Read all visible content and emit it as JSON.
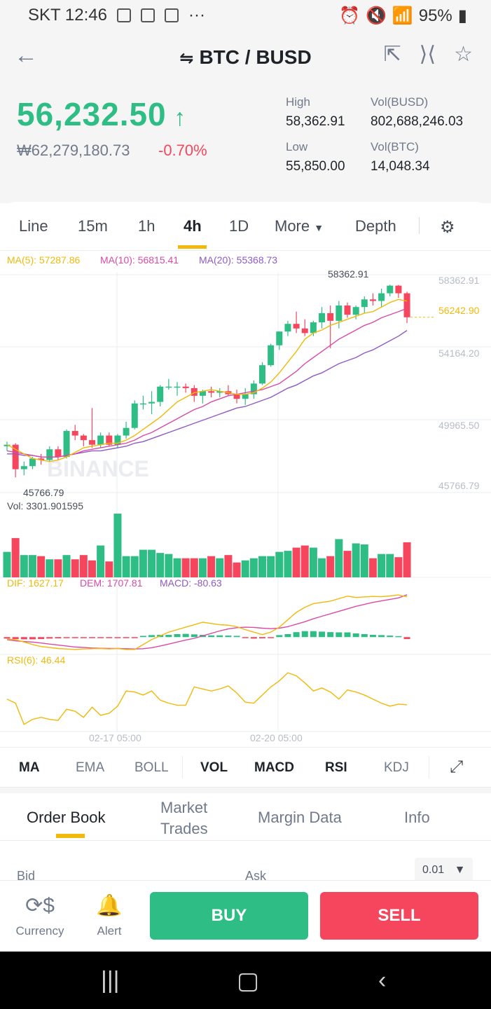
{
  "status_bar": {
    "carrier_time": "SKT 12:46",
    "dots": "···",
    "battery": "95%"
  },
  "header": {
    "pair": "BTC / BUSD",
    "last_price": "56,232.50",
    "fiat_price": "₩62,279,180.73",
    "change": "-0.70%",
    "high_label": "High",
    "high_value": "58,362.91",
    "low_label": "Low",
    "low_value": "55,850.00",
    "vol_busd_label": "Vol(BUSD)",
    "vol_busd_value": "802,688,246.03",
    "vol_btc_label": "Vol(BTC)",
    "vol_btc_value": "14,048.34"
  },
  "intervals": [
    "Line",
    "15m",
    "1h",
    "4h",
    "1D",
    "More",
    "Depth"
  ],
  "active_interval": "4h",
  "chart": {
    "ma5": "MA(5): 57287.86",
    "ma10": "MA(10): 56815.41",
    "ma20": "MA(20): 55368.73",
    "y_labels": [
      "58362.91",
      "54164.20",
      "49965.50",
      "45766.79"
    ],
    "current_price_label": "56242.90",
    "high_marker": "58362.91",
    "low_marker": "45766.79",
    "watermark": "BINANCE",
    "vol_label": "Vol: 3301.901595",
    "dif": "DIF: 1627.17",
    "dem": "DEM: 1707.81",
    "macd": "MACD: -80.63",
    "rsi": "RSI(6): 46.44",
    "x_labels": [
      "02-17 05:00",
      "02-20 05:00"
    ]
  },
  "chart_data": {
    "type": "candlestick",
    "ylim": [
      45000,
      59200
    ],
    "candles": [
      {
        "o": 47800,
        "h": 48100,
        "l": 47500,
        "c": 47900
      },
      {
        "o": 47900,
        "h": 48000,
        "l": 45766.79,
        "c": 46300
      },
      {
        "o": 46300,
        "h": 46800,
        "l": 45900,
        "c": 46500
      },
      {
        "o": 46500,
        "h": 47100,
        "l": 46300,
        "c": 47000
      },
      {
        "o": 47000,
        "h": 47300,
        "l": 46600,
        "c": 46900
      },
      {
        "o": 46900,
        "h": 47800,
        "l": 46800,
        "c": 47600
      },
      {
        "o": 47600,
        "h": 47800,
        "l": 46900,
        "c": 47100
      },
      {
        "o": 47100,
        "h": 48900,
        "l": 47000,
        "c": 48800
      },
      {
        "o": 48800,
        "h": 49200,
        "l": 48200,
        "c": 48500
      },
      {
        "o": 48500,
        "h": 48600,
        "l": 47800,
        "c": 48200
      },
      {
        "o": 48200,
        "h": 50300,
        "l": 47700,
        "c": 47900
      },
      {
        "o": 47900,
        "h": 48700,
        "l": 47700,
        "c": 48500
      },
      {
        "o": 48500,
        "h": 48700,
        "l": 47800,
        "c": 47900
      },
      {
        "o": 47900,
        "h": 48600,
        "l": 47700,
        "c": 48500
      },
      {
        "o": 48500,
        "h": 49400,
        "l": 48300,
        "c": 49000
      },
      {
        "o": 49000,
        "h": 50800,
        "l": 48900,
        "c": 50600
      },
      {
        "o": 50600,
        "h": 51100,
        "l": 50200,
        "c": 50600
      },
      {
        "o": 50600,
        "h": 51400,
        "l": 49900,
        "c": 50700
      },
      {
        "o": 50700,
        "h": 51800,
        "l": 50400,
        "c": 51700
      },
      {
        "o": 51700,
        "h": 52200,
        "l": 51500,
        "c": 51700
      },
      {
        "o": 51700,
        "h": 52000,
        "l": 51100,
        "c": 51700
      },
      {
        "o": 51700,
        "h": 51900,
        "l": 51300,
        "c": 51600
      },
      {
        "o": 51600,
        "h": 51800,
        "l": 50700,
        "c": 51100
      },
      {
        "o": 51100,
        "h": 51500,
        "l": 50600,
        "c": 51400
      },
      {
        "o": 51400,
        "h": 51700,
        "l": 51000,
        "c": 51300
      },
      {
        "o": 51300,
        "h": 51600,
        "l": 51000,
        "c": 51400
      },
      {
        "o": 51400,
        "h": 51800,
        "l": 51100,
        "c": 51200
      },
      {
        "o": 51200,
        "h": 51500,
        "l": 50600,
        "c": 50900
      },
      {
        "o": 50900,
        "h": 51600,
        "l": 50500,
        "c": 51200
      },
      {
        "o": 51200,
        "h": 52100,
        "l": 50900,
        "c": 51900
      },
      {
        "o": 51900,
        "h": 53300,
        "l": 51800,
        "c": 53100
      },
      {
        "o": 53100,
        "h": 54500,
        "l": 53000,
        "c": 54400
      },
      {
        "o": 54400,
        "h": 55300,
        "l": 54100,
        "c": 55300
      },
      {
        "o": 55300,
        "h": 56000,
        "l": 55000,
        "c": 55800
      },
      {
        "o": 55800,
        "h": 56600,
        "l": 55200,
        "c": 55500
      },
      {
        "o": 55500,
        "h": 56100,
        "l": 55000,
        "c": 55200
      },
      {
        "o": 55200,
        "h": 56000,
        "l": 55000,
        "c": 55900
      },
      {
        "o": 55900,
        "h": 56900,
        "l": 55500,
        "c": 56500
      },
      {
        "o": 56500,
        "h": 57000,
        "l": 54200,
        "c": 56000
      },
      {
        "o": 56000,
        "h": 57300,
        "l": 55500,
        "c": 57000
      },
      {
        "o": 57000,
        "h": 57200,
        "l": 56200,
        "c": 56400
      },
      {
        "o": 56400,
        "h": 57000,
        "l": 56100,
        "c": 56900
      },
      {
        "o": 56900,
        "h": 57600,
        "l": 56500,
        "c": 57400
      },
      {
        "o": 57400,
        "h": 57800,
        "l": 57000,
        "c": 57300
      },
      {
        "o": 57300,
        "h": 58100,
        "l": 56900,
        "c": 57800
      },
      {
        "o": 57800,
        "h": 58362.91,
        "l": 57600,
        "c": 58300
      },
      {
        "o": 58300,
        "h": 58350,
        "l": 57500,
        "c": 57800
      },
      {
        "o": 57800,
        "h": 57900,
        "l": 55850,
        "c": 56232.5
      }
    ],
    "ma5": [
      47900,
      47600,
      47300,
      47000,
      46900,
      46800,
      46900,
      47100,
      47400,
      47700,
      47800,
      47900,
      48000,
      48000,
      48200,
      48500,
      48900,
      49300,
      49700,
      50200,
      50700,
      51000,
      51300,
      51400,
      51500,
      51400,
      51300,
      51200,
      51200,
      51300,
      51600,
      52000,
      52600,
      53300,
      54000,
      54800,
      55200,
      55400,
      55700,
      55900,
      56100,
      56300,
      56500,
      56600,
      56900,
      57200,
      57400,
      57287.86
    ],
    "ma10": [
      47500,
      47400,
      47300,
      47200,
      47100,
      47100,
      47100,
      47200,
      47300,
      47500,
      47600,
      47700,
      47800,
      47900,
      48000,
      48200,
      48500,
      48700,
      49000,
      49300,
      49600,
      49900,
      50200,
      50400,
      50700,
      50900,
      51100,
      51200,
      51300,
      51400,
      51500,
      51700,
      51900,
      52300,
      52700,
      53200,
      53600,
      54000,
      54400,
      54800,
      55100,
      55400,
      55700,
      55900,
      56200,
      56400,
      56600,
      56815.41
    ],
    "ma20": [
      47300,
      47300,
      47200,
      47200,
      47100,
      47100,
      47100,
      47200,
      47300,
      47400,
      47500,
      47500,
      47600,
      47700,
      47800,
      48000,
      48100,
      48300,
      48500,
      48700,
      48900,
      49100,
      49300,
      49500,
      49700,
      49900,
      50100,
      50300,
      50400,
      50600,
      50800,
      51000,
      51300,
      51600,
      51800,
      52100,
      52400,
      52600,
      52900,
      53200,
      53400,
      53600,
      53900,
      54100,
      54400,
      54700,
      55000,
      55368.73
    ],
    "volume": [
      2400,
      3700,
      2100,
      2100,
      2000,
      1700,
      1700,
      2100,
      1700,
      2100,
      1600,
      3000,
      1500,
      6000,
      2000,
      2000,
      2600,
      2600,
      2300,
      2200,
      1800,
      1800,
      1800,
      1800,
      2000,
      1800,
      2100,
      1400,
      1600,
      1800,
      2000,
      2000,
      2400,
      2500,
      2800,
      3000,
      2800,
      1800,
      2000,
      3600,
      2500,
      3200,
      3100,
      1800,
      2200,
      2200,
      1900,
      3301.901595
    ],
    "macd_dif": [
      -80,
      -100,
      -200,
      -300,
      -380,
      -420,
      -460,
      -480,
      -500,
      -480,
      -470,
      -460,
      -480,
      -460,
      -500,
      -500,
      -300,
      -100,
      50,
      200,
      300,
      400,
      500,
      600,
      550,
      500,
      480,
      420,
      300,
      200,
      100,
      200,
      400,
      700,
      1000,
      1200,
      1350,
      1400,
      1450,
      1550,
      1650,
      1600,
      1620,
      1640,
      1630,
      1660,
      1700,
      1627.17
    ],
    "macd_dem": [
      -100,
      -150,
      -180,
      -200,
      -240,
      -280,
      -320,
      -360,
      -400,
      -420,
      -440,
      -450,
      -460,
      -460,
      -470,
      -480,
      -470,
      -430,
      -360,
      -280,
      -200,
      -120,
      -50,
      50,
      150,
      250,
      330,
      380,
      400,
      390,
      360,
      340,
      360,
      420,
      520,
      620,
      740,
      840,
      940,
      1040,
      1140,
      1240,
      1320,
      1400,
      1460,
      1520,
      1580,
      1707.81
    ],
    "macd_hist": [
      -60,
      -80,
      -90,
      -90,
      -80,
      -60,
      -50,
      -40,
      -40,
      -30,
      -20,
      -10,
      -10,
      -10,
      -20,
      -10,
      50,
      80,
      90,
      90,
      120,
      130,
      110,
      90,
      70,
      70,
      60,
      50,
      -40,
      -60,
      -50,
      -40,
      80,
      120,
      200,
      240,
      240,
      220,
      200,
      190,
      190,
      150,
      120,
      90,
      80,
      60,
      40,
      -80.63
    ],
    "rsi": [
      52,
      48,
      27,
      32,
      34,
      32,
      31,
      42,
      40,
      34,
      44,
      36,
      38,
      45,
      60,
      59,
      56,
      60,
      51,
      48,
      46,
      46,
      64,
      62,
      60,
      62,
      65,
      58,
      49,
      48,
      56,
      64,
      70,
      78,
      75,
      68,
      60,
      63,
      59,
      52,
      61,
      59,
      56,
      52,
      48,
      45,
      47,
      46.44
    ]
  },
  "indicator_tabs": [
    "MA",
    "EMA",
    "BOLL",
    "VOL",
    "MACD",
    "RSI",
    "KDJ"
  ],
  "orderbook_tabs": {
    "order_book": "Order Book",
    "market_trades_1": "Market",
    "market_trades_2": "Trades",
    "margin_data": "Margin Data",
    "info": "Info"
  },
  "orderbook": {
    "bid": "Bid",
    "ask": "Ask",
    "precision": "0.01"
  },
  "bottom_nav": {
    "currency": "Currency",
    "alert": "Alert",
    "buy": "BUY",
    "sell": "SELL"
  },
  "colors": {
    "up": "#2ebd85",
    "down": "#f6465d",
    "accent": "#f0b90b",
    "ma5": "#f0b90b",
    "ma10": "#d94aa8",
    "ma20": "#8d5ac6"
  }
}
